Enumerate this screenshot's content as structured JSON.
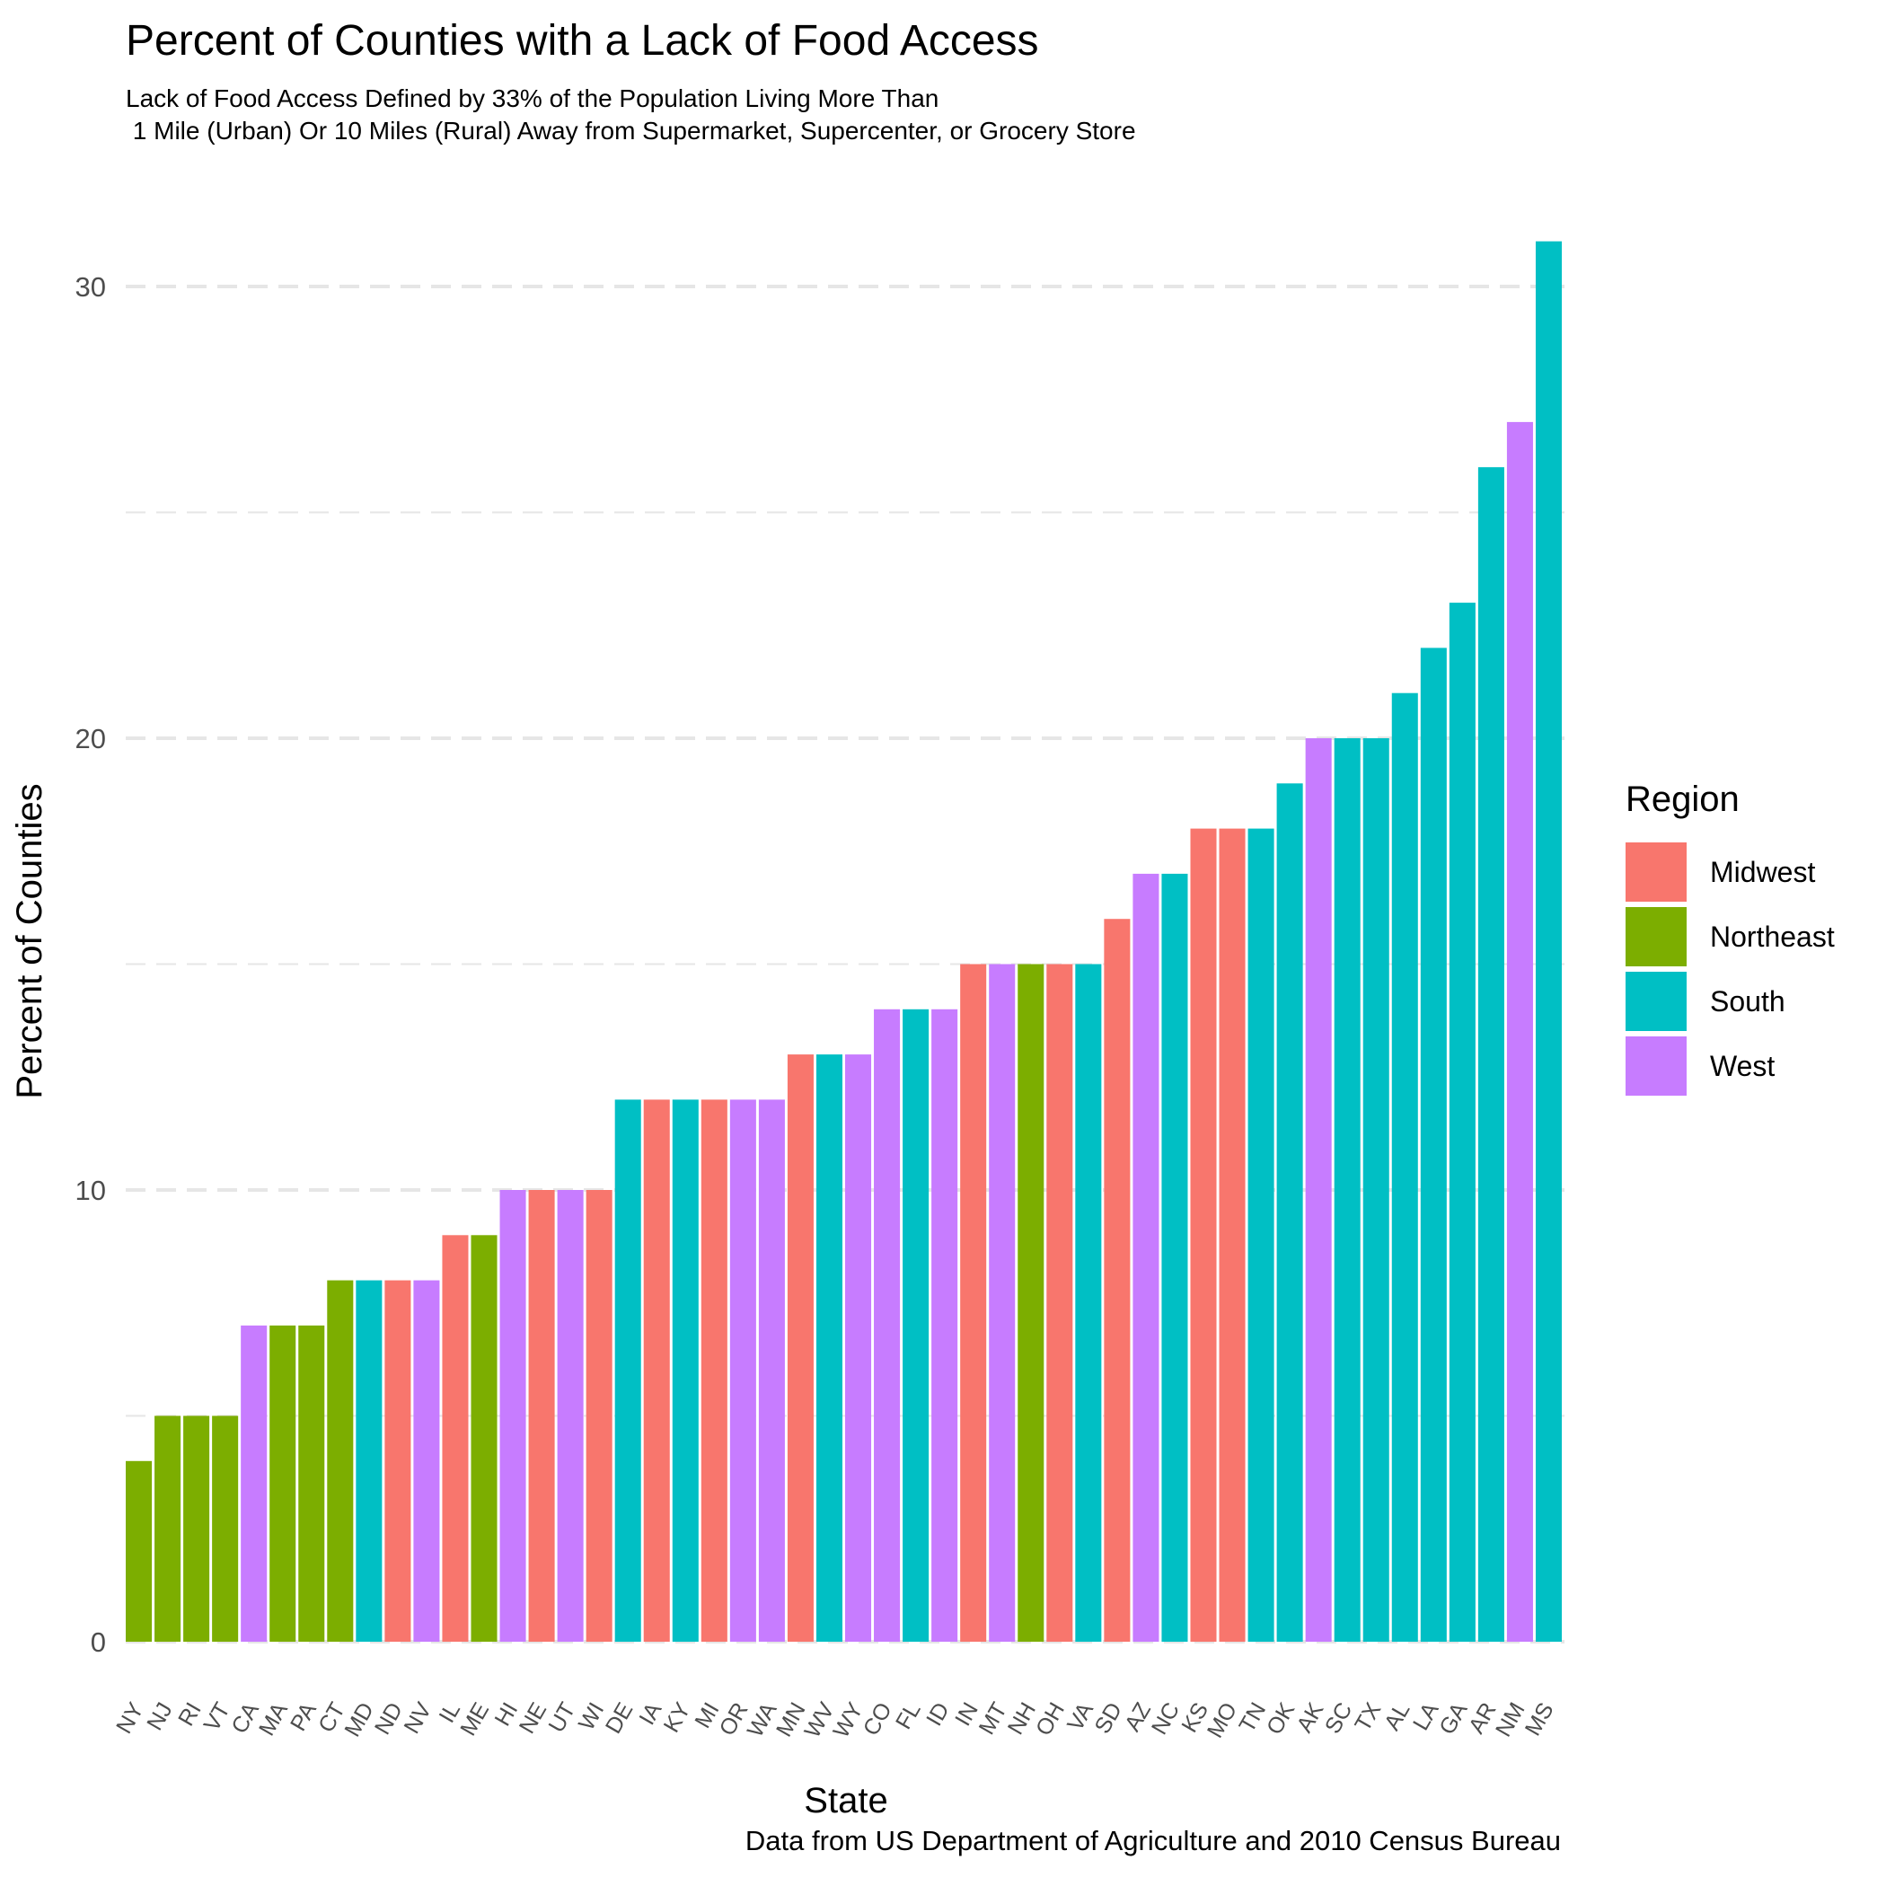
{
  "title": "Percent of Counties with a Lack of Food Access",
  "subtitle": "Lack of Food Access Defined by 33% of the Population Living More Than\n 1 Mile (Urban) Or 10 Miles (Rural) Away from Supermarket, Supercenter, or Grocery Store",
  "caption": "Data from US Department of Agriculture and 2010 Census Bureau",
  "colors": {
    "Midwest": "#F8766D",
    "Northeast": "#7CAE00",
    "South": "#00BFC4",
    "West": "#C77CFF",
    "grid": "#e6e6e6",
    "axis_text": "#4d4d4d"
  },
  "chart_data": {
    "type": "bar",
    "title": "Percent of Counties with a Lack of Food Access",
    "xlabel": "State",
    "ylabel": "Percent of Counties",
    "ylim": [
      0,
      31
    ],
    "yticks": [
      0,
      10,
      20,
      30
    ],
    "grid": true,
    "legend": {
      "title": "Region",
      "position": "right",
      "entries": [
        "Midwest",
        "Northeast",
        "South",
        "West"
      ]
    },
    "categories": [
      "NY",
      "NJ",
      "RI",
      "VT",
      "CA",
      "MA",
      "PA",
      "CT",
      "MD",
      "ND",
      "NV",
      "IL",
      "ME",
      "HI",
      "NE",
      "UT",
      "WI",
      "DE",
      "IA",
      "KY",
      "MI",
      "OR",
      "WA",
      "MN",
      "WV",
      "WY",
      "CO",
      "FL",
      "ID",
      "IN",
      "MT",
      "NH",
      "OH",
      "VA",
      "SD",
      "AZ",
      "NC",
      "KS",
      "MO",
      "TN",
      "OK",
      "AK",
      "SC",
      "TX",
      "AL",
      "LA",
      "GA",
      "AR",
      "NM",
      "MS"
    ],
    "values": [
      4,
      5,
      5,
      5,
      7,
      7,
      7,
      8,
      8,
      8,
      8,
      9,
      9,
      10,
      10,
      10,
      10,
      12,
      12,
      12,
      12,
      12,
      12,
      13,
      13,
      13,
      14,
      14,
      14,
      15,
      15,
      15,
      15,
      15,
      16,
      17,
      17,
      18,
      18,
      18,
      19,
      20,
      20,
      20,
      21,
      22,
      23,
      26,
      27,
      31
    ],
    "regions": [
      "Northeast",
      "Northeast",
      "Northeast",
      "Northeast",
      "West",
      "Northeast",
      "Northeast",
      "Northeast",
      "South",
      "Midwest",
      "West",
      "Midwest",
      "Northeast",
      "West",
      "Midwest",
      "West",
      "Midwest",
      "South",
      "Midwest",
      "South",
      "Midwest",
      "West",
      "West",
      "Midwest",
      "South",
      "West",
      "West",
      "South",
      "West",
      "Midwest",
      "West",
      "Northeast",
      "Midwest",
      "South",
      "Midwest",
      "West",
      "South",
      "Midwest",
      "Midwest",
      "South",
      "South",
      "West",
      "South",
      "South",
      "South",
      "South",
      "South",
      "South",
      "West",
      "South"
    ]
  }
}
